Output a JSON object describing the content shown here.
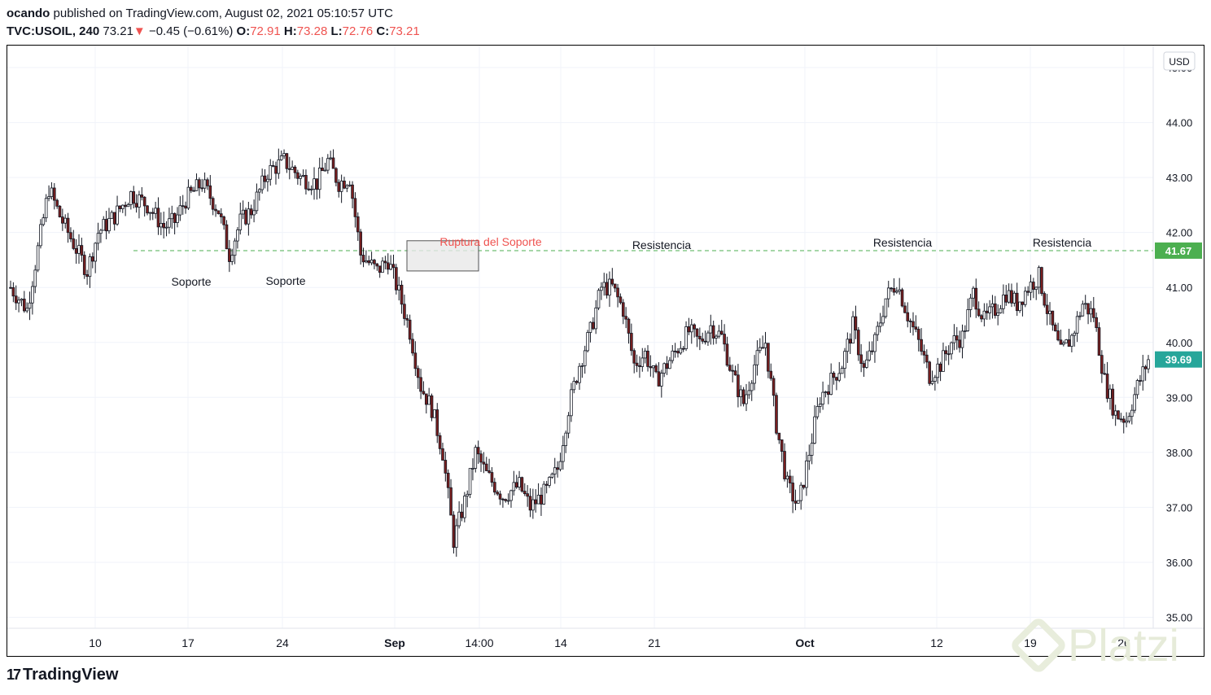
{
  "header": {
    "author": "ocando",
    "published_text": "published on TradingView.com, August 02, 2021 05:10:57 UTC",
    "symbol": "TVC:USOIL, 240",
    "last": "73.21",
    "change": "−0.45 (−0.61%)",
    "o_label": "O:",
    "o_value": "72.91",
    "h_label": "H:",
    "h_value": "73.28",
    "l_label": "L:",
    "l_value": "72.76",
    "c_label": "C:",
    "c_value": "73.21"
  },
  "footer": {
    "brand": "TradingView",
    "watermark": "Platzi"
  },
  "colors": {
    "up": "#26a69a",
    "down": "#ef5350",
    "candle_body": "#131722",
    "support_line": "#4caf50",
    "last_price": "#26a69a"
  },
  "chart_data": {
    "type": "candlestick",
    "currency": "USD",
    "ylim": [
      34.8,
      45.4
    ],
    "y_ticks": [
      "45.00",
      "44.00",
      "43.00",
      "42.00",
      "41.00",
      "40.00",
      "39.00",
      "38.00",
      "37.00",
      "36.00",
      "35.00"
    ],
    "x_ticks": [
      {
        "label": "10",
        "bold": false
      },
      {
        "label": "17",
        "bold": false
      },
      {
        "label": "24",
        "bold": false
      },
      {
        "label": "Sep",
        "bold": true
      },
      {
        "label": "14:00",
        "bold": false
      },
      {
        "label": "14",
        "bold": false
      },
      {
        "label": "21",
        "bold": false
      },
      {
        "label": "Oct",
        "bold": true
      },
      {
        "label": "12",
        "bold": false
      },
      {
        "label": "19",
        "bold": false
      },
      {
        "label": "26",
        "bold": false
      }
    ],
    "support_level": 41.67,
    "support_label": "41.67",
    "last_price": 39.69,
    "last_price_label": "39.69",
    "annotations": [
      {
        "text": "Soporte",
        "color": "#131722"
      },
      {
        "text": "Soporte",
        "color": "#131722"
      },
      {
        "text": "Ruptura del Soporte",
        "color": "#ef5350"
      },
      {
        "text": "Resistencia",
        "color": "#131722"
      },
      {
        "text": "Resistencia",
        "color": "#131722"
      },
      {
        "text": "Resistencia",
        "color": "#131722"
      }
    ],
    "close_path": [
      [
        0,
        41.0
      ],
      [
        6,
        40.6
      ],
      [
        10,
        41.7
      ],
      [
        14,
        42.8
      ],
      [
        18,
        42.3
      ],
      [
        24,
        41.7
      ],
      [
        28,
        41.3
      ],
      [
        32,
        42.0
      ],
      [
        38,
        42.3
      ],
      [
        44,
        42.7
      ],
      [
        50,
        42.5
      ],
      [
        56,
        42.1
      ],
      [
        60,
        42.2
      ],
      [
        64,
        42.6
      ],
      [
        70,
        42.9
      ],
      [
        76,
        42.4
      ],
      [
        80,
        41.6
      ],
      [
        84,
        42.2
      ],
      [
        88,
        42.4
      ],
      [
        94,
        43.1
      ],
      [
        100,
        43.3
      ],
      [
        106,
        43.0
      ],
      [
        112,
        42.9
      ],
      [
        116,
        43.3
      ],
      [
        120,
        42.9
      ],
      [
        124,
        43.0
      ],
      [
        128,
        41.6
      ],
      [
        134,
        41.3
      ],
      [
        138,
        41.5
      ],
      [
        142,
        40.9
      ],
      [
        146,
        40.2
      ],
      [
        150,
        39.2
      ],
      [
        154,
        38.8
      ],
      [
        158,
        38.0
      ],
      [
        162,
        36.4
      ],
      [
        166,
        37.1
      ],
      [
        170,
        38.0
      ],
      [
        174,
        37.6
      ],
      [
        180,
        37.2
      ],
      [
        186,
        37.4
      ],
      [
        190,
        37.0
      ],
      [
        196,
        37.3
      ],
      [
        200,
        37.7
      ],
      [
        204,
        38.8
      ],
      [
        208,
        39.6
      ],
      [
        212,
        40.2
      ],
      [
        216,
        41.0
      ],
      [
        220,
        41.0
      ],
      [
        224,
        40.6
      ],
      [
        228,
        39.6
      ],
      [
        232,
        39.8
      ],
      [
        236,
        39.3
      ],
      [
        240,
        39.6
      ],
      [
        244,
        39.9
      ],
      [
        248,
        40.2
      ],
      [
        252,
        40.0
      ],
      [
        256,
        40.3
      ],
      [
        260,
        40.1
      ],
      [
        264,
        39.4
      ],
      [
        268,
        38.9
      ],
      [
        272,
        39.6
      ],
      [
        276,
        40.0
      ],
      [
        280,
        38.5
      ],
      [
        284,
        37.4
      ],
      [
        288,
        37.0
      ],
      [
        292,
        38.0
      ],
      [
        296,
        39.0
      ],
      [
        300,
        39.3
      ],
      [
        304,
        39.6
      ],
      [
        308,
        40.3
      ],
      [
        312,
        39.5
      ],
      [
        316,
        40.0
      ],
      [
        320,
        40.8
      ],
      [
        324,
        41.1
      ],
      [
        328,
        40.5
      ],
      [
        332,
        40.0
      ],
      [
        336,
        39.4
      ],
      [
        340,
        39.6
      ],
      [
        344,
        40.0
      ],
      [
        348,
        40.1
      ],
      [
        352,
        40.9
      ],
      [
        356,
        40.4
      ],
      [
        360,
        40.6
      ],
      [
        364,
        40.9
      ],
      [
        368,
        40.7
      ],
      [
        372,
        41.0
      ],
      [
        376,
        41.2
      ],
      [
        380,
        40.4
      ],
      [
        384,
        39.8
      ],
      [
        388,
        40.1
      ],
      [
        392,
        40.7
      ],
      [
        396,
        40.5
      ],
      [
        400,
        39.3
      ],
      [
        404,
        38.7
      ],
      [
        408,
        38.6
      ],
      [
        412,
        39.2
      ],
      [
        416,
        39.69
      ]
    ]
  }
}
